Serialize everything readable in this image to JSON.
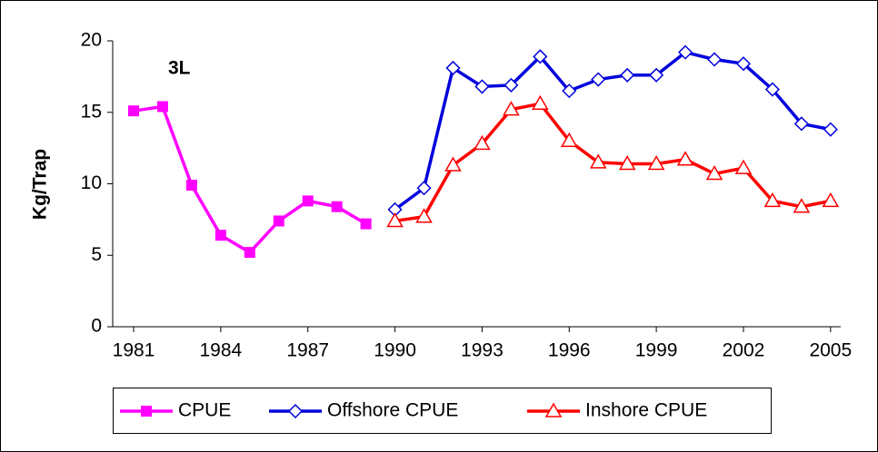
{
  "chart_data": {
    "type": "line",
    "annotation": "3L",
    "y_label": "Kg/Trap",
    "x": [
      1981,
      1982,
      1983,
      1984,
      1985,
      1986,
      1987,
      1988,
      1989,
      1990,
      1991,
      1992,
      1993,
      1994,
      1995,
      1996,
      1997,
      1998,
      1999,
      2000,
      2001,
      2002,
      2003,
      2004,
      2005
    ],
    "series": [
      {
        "name": "CPUE",
        "color": "#ff00ff",
        "marker": "square",
        "values": [
          15.1,
          15.4,
          9.9,
          6.4,
          5.2,
          7.4,
          8.8,
          8.4,
          7.2,
          null,
          null,
          null,
          null,
          null,
          null,
          null,
          null,
          null,
          null,
          null,
          null,
          null,
          null,
          null,
          null
        ]
      },
      {
        "name": "Offshore CPUE",
        "color": "#0000dd",
        "marker": "diamond",
        "values": [
          null,
          null,
          null,
          null,
          null,
          null,
          null,
          null,
          null,
          8.2,
          9.7,
          18.1,
          16.8,
          16.9,
          18.9,
          16.5,
          17.3,
          17.6,
          17.6,
          19.2,
          18.7,
          18.4,
          16.6,
          14.2,
          13.8
        ]
      },
      {
        "name": "Inshore CPUE",
        "color": "#ff0000",
        "marker": "triangle",
        "values": [
          null,
          null,
          null,
          null,
          null,
          null,
          null,
          null,
          null,
          7.4,
          7.7,
          11.3,
          12.8,
          15.2,
          15.6,
          13.0,
          11.5,
          11.4,
          11.4,
          11.7,
          10.7,
          11.1,
          8.8,
          8.4,
          8.8
        ]
      }
    ],
    "xlim": [
      1980.28,
      2005.35
    ],
    "xticks": [
      1981,
      1984,
      1987,
      1990,
      1993,
      1996,
      1999,
      2002,
      2005
    ],
    "ylim": [
      0,
      20
    ],
    "yticks": [
      0,
      5,
      10,
      15,
      20
    ],
    "grid": false,
    "legend": "bottom"
  }
}
